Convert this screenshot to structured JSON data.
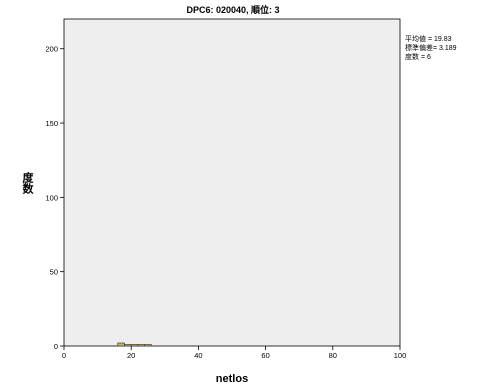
{
  "chart_data": {
    "type": "bar",
    "title": "DPC6: 020040, 順位: 3",
    "xlabel": "netlos",
    "ylabel": "度数",
    "xlim": [
      0,
      100
    ],
    "ylim": [
      0,
      220
    ],
    "xticks": [
      0,
      20,
      40,
      60,
      80,
      100
    ],
    "yticks": [
      0,
      50,
      100,
      150,
      200
    ],
    "bins": [
      {
        "x0": 16,
        "x1": 18,
        "count": 2
      },
      {
        "x0": 18,
        "x1": 20,
        "count": 1
      },
      {
        "x0": 20,
        "x1": 22,
        "count": 1
      },
      {
        "x0": 22,
        "x1": 24,
        "count": 1
      },
      {
        "x0": 24,
        "x1": 26,
        "count": 1
      }
    ],
    "stats": {
      "mean_label": "平均値 = 19.83",
      "sd_label": "標準偏差= 3.189",
      "n_label": "度数 = 6"
    },
    "colors": {
      "plot_bg": "#eeeeee",
      "bar_fill": "#c8b560",
      "bar_stroke": "#3a3a3a",
      "axis": "#000000"
    },
    "grid": false
  }
}
